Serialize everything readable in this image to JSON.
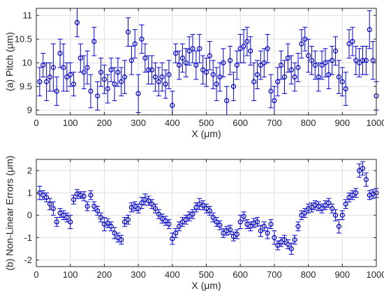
{
  "colors": {
    "series": "#0000cc",
    "grid": "#dedede",
    "axis": "#262626"
  },
  "chart_data": [
    {
      "type": "scatter",
      "errorbars": true,
      "grid": true,
      "title": "",
      "xlabel": "X (μm)",
      "ylabel": "(a)  Pitch (μm)",
      "xlim": [
        0,
        1000
      ],
      "ylim": [
        8.9,
        11.15
      ],
      "xticks": [
        "0",
        "100",
        "200",
        "300",
        "400",
        "500",
        "600",
        "700",
        "800",
        "900",
        "1000"
      ],
      "yticks": [
        "9",
        "9.5",
        "10",
        "10.5",
        "11"
      ],
      "x": [
        10,
        20,
        30,
        40,
        50,
        60,
        70,
        80,
        90,
        100,
        110,
        120,
        130,
        140,
        150,
        160,
        170,
        180,
        190,
        200,
        210,
        220,
        230,
        240,
        250,
        260,
        270,
        280,
        290,
        300,
        310,
        320,
        330,
        340,
        350,
        360,
        370,
        380,
        390,
        400,
        410,
        420,
        430,
        440,
        450,
        460,
        470,
        480,
        490,
        500,
        510,
        520,
        530,
        540,
        550,
        560,
        570,
        580,
        590,
        600,
        610,
        620,
        630,
        640,
        650,
        660,
        670,
        680,
        690,
        700,
        710,
        720,
        730,
        740,
        750,
        760,
        770,
        780,
        790,
        800,
        810,
        820,
        830,
        840,
        850,
        860,
        870,
        880,
        890,
        900,
        910,
        920,
        930,
        940,
        950,
        960,
        970,
        980,
        990,
        1000
      ],
      "y": [
        9.6,
        9.95,
        9.6,
        9.7,
        9.9,
        9.4,
        10.2,
        9.9,
        9.7,
        9.75,
        9.55,
        10.85,
        10.1,
        9.8,
        9.9,
        9.4,
        10.45,
        9.3,
        9.8,
        9.65,
        9.45,
        9.85,
        9.55,
        9.8,
        9.6,
        9.7,
        10.65,
        10.05,
        10.4,
        9.35,
        10.5,
        10.1,
        9.85,
        9.85,
        9.7,
        9.6,
        9.7,
        9.55,
        9.75,
        9.1,
        10.2,
        9.95,
        10.1,
        10.0,
        10.25,
        10.3,
        9.95,
        10.3,
        9.85,
        9.8,
        10.15,
        9.75,
        9.55,
        9.7,
        10.0,
        9.2,
        10.05,
        9.5,
        9.95,
        10.3,
        10.35,
        10.45,
        10.25,
        9.6,
        9.75,
        9.95,
        10.0,
        10.3,
        9.4,
        9.2,
        9.6,
        9.95,
        9.7,
        10.1,
        9.85,
        9.7,
        9.9,
        10.4,
        10.5,
        10.15,
        10.05,
        9.95,
        9.7,
        9.95,
        10.0,
        9.75,
        10.05,
        10.25,
        9.7,
        9.6,
        9.45,
        10.4,
        10.45,
        10.05,
        10.0,
        10.05,
        10.05,
        10.7,
        10.05,
        9.3
      ],
      "err": [
        0.3,
        0.25,
        0.4,
        0.3,
        0.5,
        0.3,
        0.3,
        0.5,
        0.3,
        0.25,
        0.25,
        0.3,
        0.3,
        0.35,
        0.35,
        0.35,
        0.3,
        0.3,
        0.3,
        0.3,
        0.3,
        0.25,
        0.35,
        0.3,
        0.3,
        0.35,
        0.3,
        0.3,
        0.3,
        0.4,
        0.3,
        0.3,
        0.3,
        0.3,
        0.3,
        0.3,
        0.3,
        0.3,
        0.3,
        0.3,
        0.2,
        0.3,
        0.3,
        0.3,
        0.3,
        0.3,
        0.3,
        0.3,
        0.3,
        0.3,
        0.3,
        0.3,
        0.35,
        0.3,
        0.3,
        0.3,
        0.3,
        0.3,
        0.3,
        0.3,
        0.35,
        0.3,
        0.3,
        0.4,
        0.3,
        0.3,
        0.3,
        0.3,
        0.35,
        0.3,
        0.3,
        0.3,
        0.35,
        0.3,
        0.3,
        0.3,
        0.3,
        0.3,
        0.25,
        0.35,
        0.3,
        0.3,
        0.3,
        0.3,
        0.3,
        0.3,
        0.3,
        0.3,
        0.35,
        0.3,
        0.35,
        0.3,
        0.3,
        0.3,
        0.3,
        0.3,
        0.3,
        0.4,
        0.4,
        0.3
      ]
    },
    {
      "type": "scatter",
      "errorbars": true,
      "grid": true,
      "title": "",
      "xlabel": "X (μm)",
      "ylabel": "(b)  Non-Linear Errors (μm)",
      "xlim": [
        0,
        1000
      ],
      "ylim": [
        -2.3,
        2.5
      ],
      "xticks": [
        "0",
        "100",
        "200",
        "300",
        "400",
        "500",
        "600",
        "700",
        "800",
        "900",
        "1000"
      ],
      "yticks": [
        "-2",
        "-1",
        "0",
        "1",
        "2"
      ],
      "x": [
        10,
        20,
        30,
        40,
        50,
        60,
        70,
        80,
        90,
        100,
        110,
        120,
        130,
        140,
        150,
        160,
        170,
        180,
        190,
        200,
        210,
        220,
        230,
        240,
        250,
        260,
        270,
        280,
        290,
        300,
        310,
        320,
        330,
        340,
        350,
        360,
        370,
        380,
        390,
        400,
        410,
        420,
        430,
        440,
        450,
        460,
        470,
        480,
        490,
        500,
        510,
        520,
        530,
        540,
        550,
        560,
        570,
        580,
        590,
        600,
        610,
        620,
        630,
        640,
        650,
        660,
        670,
        680,
        690,
        700,
        710,
        720,
        730,
        740,
        750,
        760,
        770,
        780,
        790,
        800,
        810,
        820,
        830,
        840,
        850,
        860,
        870,
        880,
        890,
        900,
        910,
        920,
        930,
        940,
        950,
        960,
        970,
        980,
        990,
        1000
      ],
      "y": [
        1.0,
        0.9,
        0.8,
        0.5,
        0.3,
        -0.3,
        0.1,
        0.0,
        -0.1,
        -0.3,
        0.7,
        0.95,
        0.9,
        0.85,
        0.4,
        0.9,
        0.4,
        0.2,
        -0.1,
        -0.4,
        -0.35,
        -0.5,
        -0.8,
        -1.0,
        -1.1,
        -0.3,
        -0.2,
        0.35,
        0.4,
        0.3,
        0.55,
        0.7,
        0.65,
        0.5,
        0.3,
        0.05,
        -0.15,
        -0.25,
        -0.4,
        -1.05,
        -0.8,
        -0.5,
        -0.3,
        -0.2,
        -0.05,
        0.05,
        0.35,
        0.5,
        0.45,
        0.3,
        0.2,
        -0.1,
        -0.3,
        -0.45,
        -0.8,
        -0.7,
        -0.65,
        -0.95,
        -0.85,
        -0.3,
        -0.05,
        -0.4,
        -0.5,
        -0.35,
        -0.3,
        -0.7,
        -0.5,
        -0.8,
        -0.4,
        -1.0,
        -1.35,
        -1.2,
        -1.1,
        -1.3,
        -1.5,
        -1.1,
        -0.5,
        0.0,
        0.1,
        0.3,
        0.35,
        0.45,
        0.4,
        0.3,
        0.45,
        0.55,
        0.3,
        0.0,
        -0.5,
        0.0,
        0.5,
        0.8,
        0.9,
        1.0,
        2.0,
        2.1,
        1.6,
        0.9,
        0.95,
        1.0
      ],
      "err": [
        0.3,
        0.2,
        0.2,
        0.25,
        0.3,
        0.2,
        0.2,
        0.2,
        0.2,
        0.3,
        0.2,
        0.2,
        0.15,
        0.2,
        0.2,
        0.2,
        0.2,
        0.2,
        0.2,
        0.3,
        0.2,
        0.2,
        0.25,
        0.2,
        0.2,
        0.2,
        0.2,
        0.2,
        0.2,
        0.2,
        0.25,
        0.25,
        0.2,
        0.2,
        0.2,
        0.2,
        0.2,
        0.2,
        0.2,
        0.25,
        0.2,
        0.2,
        0.2,
        0.2,
        0.2,
        0.2,
        0.2,
        0.25,
        0.2,
        0.2,
        0.2,
        0.2,
        0.2,
        0.2,
        0.2,
        0.2,
        0.2,
        0.2,
        0.2,
        0.3,
        0.2,
        0.2,
        0.2,
        0.2,
        0.2,
        0.25,
        0.2,
        0.25,
        0.2,
        0.3,
        0.2,
        0.2,
        0.2,
        0.2,
        0.25,
        0.2,
        0.2,
        0.2,
        0.2,
        0.2,
        0.2,
        0.2,
        0.2,
        0.2,
        0.2,
        0.2,
        0.2,
        0.25,
        0.3,
        0.2,
        0.2,
        0.2,
        0.2,
        0.2,
        0.3,
        0.3,
        0.3,
        0.2,
        0.2,
        0.2
      ]
    }
  ]
}
